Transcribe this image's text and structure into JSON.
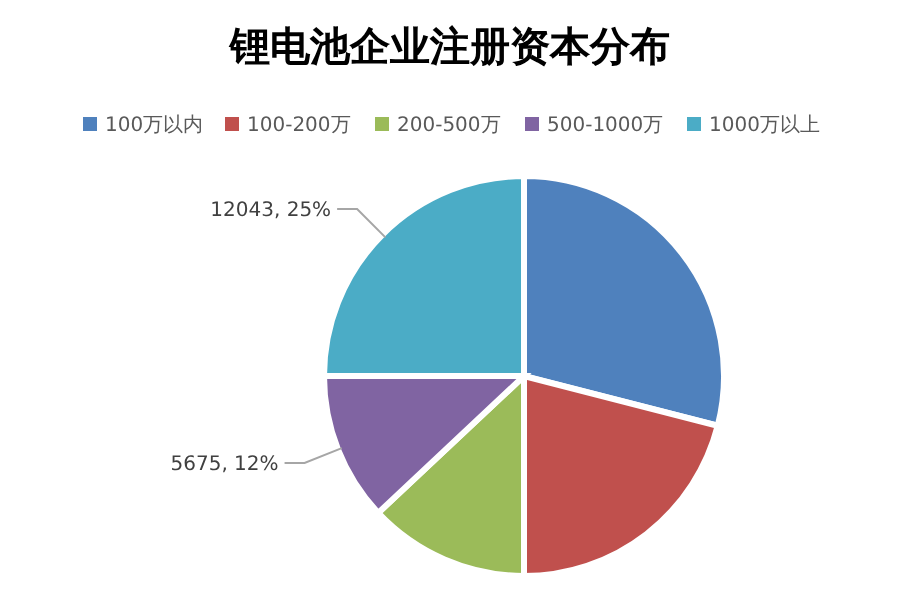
{
  "chart_data": {
    "type": "pie",
    "title": "锂电池企业注册资本分布",
    "categories": [
      "100万以内",
      "100-200万",
      "200-500万",
      "500-1000万",
      "1000万以上"
    ],
    "values": [
      29,
      21,
      13,
      12,
      25
    ],
    "colors": [
      "#4f81bd",
      "#c0504d",
      "#9bbb59",
      "#8064a2",
      "#4bacc6"
    ],
    "value_labels": [
      null,
      null,
      null,
      "5675, 12%",
      "12043, 25%"
    ],
    "legend": "top"
  }
}
